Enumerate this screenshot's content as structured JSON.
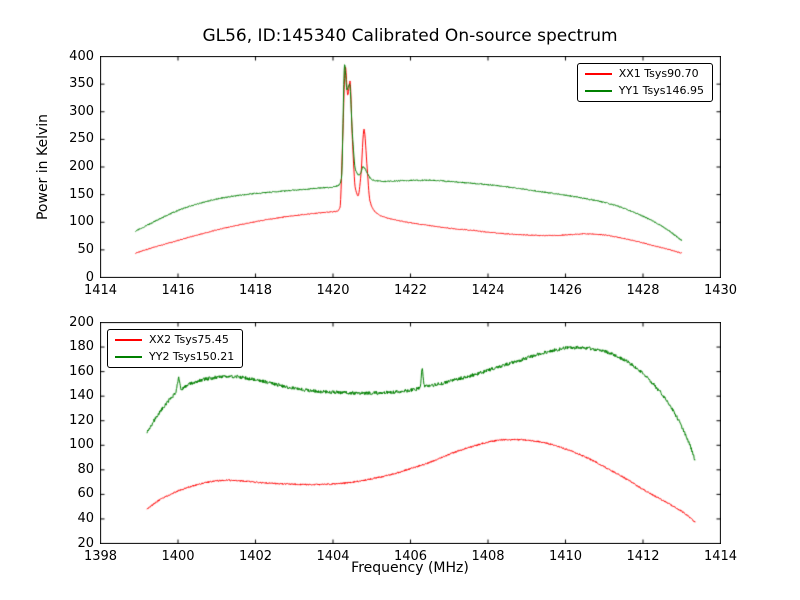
{
  "figure": {
    "title": "GL56, ID:145340 Calibrated On-source spectrum"
  },
  "chart_data": [
    {
      "type": "line",
      "title": "GL56, ID:145340 Calibrated On-source spectrum",
      "xlabel": "",
      "ylabel": "Power in Kelvin",
      "xlim": [
        1414,
        1430
      ],
      "ylim": [
        0,
        400
      ],
      "xticks": [
        1414,
        1416,
        1418,
        1420,
        1422,
        1424,
        1426,
        1428,
        1430
      ],
      "yticks": [
        0,
        50,
        100,
        150,
        200,
        250,
        300,
        350,
        400
      ],
      "grid": false,
      "legend_position": "upper right",
      "series": [
        {
          "name": "XX1 Tsys90.70",
          "color": "#ff0000",
          "noise": 0.8,
          "points": [
            [
              1414.9,
              44
            ],
            [
              1415.3,
              53
            ],
            [
              1415.7,
              61
            ],
            [
              1416.1,
              69
            ],
            [
              1416.5,
              77
            ],
            [
              1417.0,
              86
            ],
            [
              1417.5,
              94
            ],
            [
              1418.0,
              101
            ],
            [
              1418.5,
              107
            ],
            [
              1419.0,
              112
            ],
            [
              1419.4,
              115
            ],
            [
              1419.8,
              118
            ],
            [
              1420.0,
              119
            ],
            [
              1420.1,
              120
            ],
            [
              1420.18,
              126
            ],
            [
              1420.25,
              250
            ],
            [
              1420.32,
              382
            ],
            [
              1420.38,
              330
            ],
            [
              1420.44,
              355
            ],
            [
              1420.5,
              250
            ],
            [
              1420.58,
              160
            ],
            [
              1420.65,
              148
            ],
            [
              1420.72,
              185
            ],
            [
              1420.8,
              268
            ],
            [
              1420.88,
              200
            ],
            [
              1420.95,
              140
            ],
            [
              1421.05,
              122
            ],
            [
              1421.2,
              113
            ],
            [
              1421.5,
              106
            ],
            [
              1422.0,
              99
            ],
            [
              1422.5,
              94
            ],
            [
              1423.0,
              89
            ],
            [
              1423.5,
              86
            ],
            [
              1424.0,
              82
            ],
            [
              1424.5,
              79
            ],
            [
              1425.0,
              77
            ],
            [
              1425.5,
              76
            ],
            [
              1426.0,
              77
            ],
            [
              1426.5,
              79
            ],
            [
              1427.0,
              77
            ],
            [
              1427.4,
              72
            ],
            [
              1427.8,
              66
            ],
            [
              1428.2,
              59
            ],
            [
              1428.6,
              52
            ],
            [
              1429.0,
              44
            ]
          ]
        },
        {
          "name": "YY1 Tsys146.95",
          "color": "#008000",
          "noise": 1.1,
          "points": [
            [
              1414.9,
              84
            ],
            [
              1415.3,
              98
            ],
            [
              1415.7,
              112
            ],
            [
              1416.1,
              124
            ],
            [
              1416.5,
              133
            ],
            [
              1417.0,
              142
            ],
            [
              1417.5,
              148
            ],
            [
              1418.0,
              152
            ],
            [
              1418.5,
              155
            ],
            [
              1419.0,
              158
            ],
            [
              1419.5,
              161
            ],
            [
              1420.0,
              164
            ],
            [
              1420.15,
              167
            ],
            [
              1420.22,
              180
            ],
            [
              1420.3,
              386
            ],
            [
              1420.36,
              340
            ],
            [
              1420.43,
              350
            ],
            [
              1420.5,
              260
            ],
            [
              1420.58,
              195
            ],
            [
              1420.68,
              185
            ],
            [
              1420.78,
              200
            ],
            [
              1420.88,
              190
            ],
            [
              1421.0,
              177
            ],
            [
              1421.3,
              174
            ],
            [
              1421.7,
              175
            ],
            [
              1422.1,
              176
            ],
            [
              1422.5,
              176
            ],
            [
              1423.0,
              174
            ],
            [
              1423.5,
              171
            ],
            [
              1424.0,
              168
            ],
            [
              1424.5,
              164
            ],
            [
              1425.0,
              159
            ],
            [
              1425.5,
              154
            ],
            [
              1426.0,
              149
            ],
            [
              1426.5,
              143
            ],
            [
              1427.0,
              136
            ],
            [
              1427.4,
              128
            ],
            [
              1427.8,
              117
            ],
            [
              1428.2,
              104
            ],
            [
              1428.6,
              88
            ],
            [
              1429.0,
              67
            ]
          ]
        }
      ]
    },
    {
      "type": "line",
      "title": "",
      "xlabel": "Frequency (MHz)",
      "ylabel": "",
      "xlim": [
        1398,
        1414
      ],
      "ylim": [
        20,
        200
      ],
      "xticks": [
        1398,
        1400,
        1402,
        1404,
        1406,
        1408,
        1410,
        1412,
        1414
      ],
      "yticks": [
        20,
        40,
        60,
        80,
        100,
        120,
        140,
        160,
        180,
        200
      ],
      "grid": false,
      "legend_position": "upper left",
      "series": [
        {
          "name": "XX2 Tsys75.45",
          "color": "#ff0000",
          "noise": 0.6,
          "points": [
            [
              1399.2,
              48
            ],
            [
              1399.5,
              55
            ],
            [
              1399.8,
              60
            ],
            [
              1400.1,
              64
            ],
            [
              1400.4,
              67
            ],
            [
              1400.7,
              69.5
            ],
            [
              1401.0,
              71
            ],
            [
              1401.3,
              71.5
            ],
            [
              1401.6,
              71
            ],
            [
              1402.0,
              70
            ],
            [
              1402.4,
              69
            ],
            [
              1402.8,
              68.5
            ],
            [
              1403.2,
              68
            ],
            [
              1403.6,
              68
            ],
            [
              1404.0,
              68.5
            ],
            [
              1404.4,
              69.5
            ],
            [
              1404.8,
              71.5
            ],
            [
              1405.2,
              74
            ],
            [
              1405.6,
              77
            ],
            [
              1406.0,
              81
            ],
            [
              1406.4,
              85
            ],
            [
              1406.8,
              90
            ],
            [
              1407.2,
              95
            ],
            [
              1407.6,
              99
            ],
            [
              1408.0,
              102.5
            ],
            [
              1408.4,
              104.5
            ],
            [
              1408.8,
              104.5
            ],
            [
              1409.2,
              103.5
            ],
            [
              1409.6,
              101
            ],
            [
              1410.0,
              97
            ],
            [
              1410.4,
              92
            ],
            [
              1410.8,
              86
            ],
            [
              1411.2,
              79
            ],
            [
              1411.6,
              72
            ],
            [
              1412.0,
              64
            ],
            [
              1412.4,
              57
            ],
            [
              1412.8,
              50
            ],
            [
              1413.1,
              44
            ],
            [
              1413.35,
              37
            ]
          ]
        },
        {
          "name": "YY2 Tsys150.21",
          "color": "#008000",
          "noise": 1.4,
          "points": [
            [
              1399.2,
              110
            ],
            [
              1399.4,
              121
            ],
            [
              1399.6,
              130
            ],
            [
              1399.8,
              138
            ],
            [
              1399.95,
              144
            ],
            [
              1400.02,
              155
            ],
            [
              1400.08,
              146
            ],
            [
              1400.3,
              150
            ],
            [
              1400.6,
              153
            ],
            [
              1400.9,
              155
            ],
            [
              1401.2,
              156
            ],
            [
              1401.5,
              156
            ],
            [
              1401.8,
              154.5
            ],
            [
              1402.2,
              152
            ],
            [
              1402.6,
              149
            ],
            [
              1403.0,
              146.5
            ],
            [
              1403.4,
              144.5
            ],
            [
              1403.8,
              143.5
            ],
            [
              1404.2,
              143
            ],
            [
              1404.6,
              142.5
            ],
            [
              1405.0,
              142.5
            ],
            [
              1405.4,
              143
            ],
            [
              1405.8,
              144
            ],
            [
              1406.1,
              145.5
            ],
            [
              1406.25,
              147
            ],
            [
              1406.3,
              163
            ],
            [
              1406.36,
              148
            ],
            [
              1406.6,
              149
            ],
            [
              1407.0,
              152
            ],
            [
              1407.4,
              155.5
            ],
            [
              1407.8,
              159
            ],
            [
              1408.2,
              163
            ],
            [
              1408.6,
              167
            ],
            [
              1409.0,
              171
            ],
            [
              1409.4,
              175
            ],
            [
              1409.8,
              178
            ],
            [
              1410.1,
              179.5
            ],
            [
              1410.4,
              179.5
            ],
            [
              1410.7,
              178.5
            ],
            [
              1411.0,
              176.5
            ],
            [
              1411.3,
              173
            ],
            [
              1411.6,
              168
            ],
            [
              1411.9,
              161
            ],
            [
              1412.2,
              152
            ],
            [
              1412.5,
              141
            ],
            [
              1412.8,
              127
            ],
            [
              1413.0,
              115
            ],
            [
              1413.2,
              101
            ],
            [
              1413.35,
              87
            ]
          ]
        }
      ]
    }
  ]
}
